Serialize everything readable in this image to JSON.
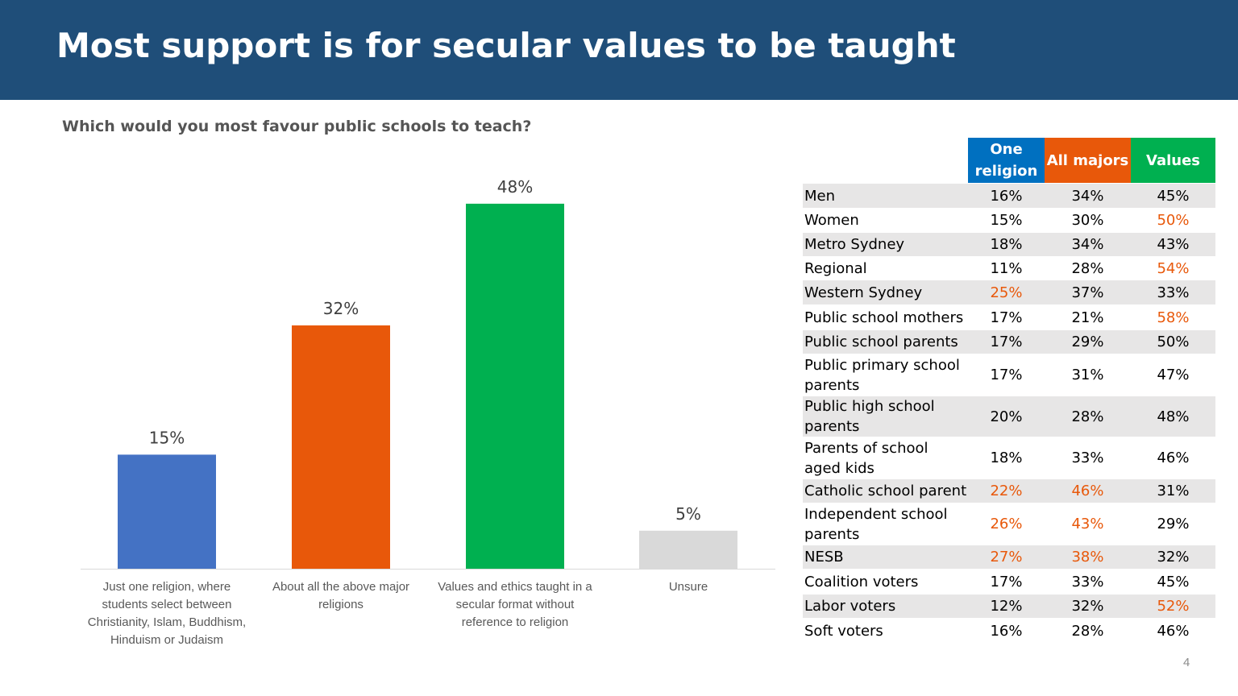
{
  "title": "Most support is for secular values to be taught",
  "subtitle": "Which would you most favour public schools to teach?",
  "page_number": "4",
  "chart_data": {
    "type": "bar",
    "categories": [
      "Just one religion, where students select between Christianity, Islam, Buddhism, Hinduism or Judaism",
      "About all the above major religions",
      "Values and ethics taught in a secular format without reference to religion",
      "Unsure"
    ],
    "category_lines": [
      [
        "Just one religion, where",
        "students select between",
        "Christianity, Islam, Buddhism,",
        "Hinduism or Judaism"
      ],
      [
        "About all the above major",
        "religions"
      ],
      [
        "Values and ethics taught in a",
        "secular format without",
        "reference to religion"
      ],
      [
        "Unsure"
      ]
    ],
    "values": [
      15,
      32,
      48,
      5
    ],
    "data_labels": [
      "15%",
      "32%",
      "48%",
      "5%"
    ],
    "colors": [
      "#4472c4",
      "#e8580a",
      "#00b050",
      "#d9d9d9"
    ],
    "ylim": [
      0,
      50
    ],
    "grid": false,
    "title": "",
    "xlabel": "",
    "ylabel": ""
  },
  "table": {
    "headers": [
      {
        "label": "One religion",
        "color": "#0070c0"
      },
      {
        "label": "All majors",
        "color": "#e8580a"
      },
      {
        "label": "Values",
        "color": "#00b050"
      }
    ],
    "highlight_color": "#e8580a",
    "rows": [
      {
        "label": "Men",
        "values": [
          "16%",
          "34%",
          "45%"
        ],
        "highlight": [
          false,
          false,
          false
        ]
      },
      {
        "label": "Women",
        "values": [
          "15%",
          "30%",
          "50%"
        ],
        "highlight": [
          false,
          false,
          true
        ]
      },
      {
        "label": "Metro Sydney",
        "values": [
          "18%",
          "34%",
          "43%"
        ],
        "highlight": [
          false,
          false,
          false
        ]
      },
      {
        "label": "Regional",
        "values": [
          "11%",
          "28%",
          "54%"
        ],
        "highlight": [
          false,
          false,
          true
        ]
      },
      {
        "label": "Western Sydney",
        "values": [
          "25%",
          "37%",
          "33%"
        ],
        "highlight": [
          true,
          false,
          false
        ]
      },
      {
        "label": "Public school mothers",
        "values": [
          "17%",
          "21%",
          "58%"
        ],
        "highlight": [
          false,
          false,
          true
        ]
      },
      {
        "label": "Public school parents",
        "values": [
          "17%",
          "29%",
          "50%"
        ],
        "highlight": [
          false,
          false,
          false
        ]
      },
      {
        "label": "Public primary school parents",
        "values": [
          "17%",
          "31%",
          "47%"
        ],
        "highlight": [
          false,
          false,
          false
        ]
      },
      {
        "label": "Public high school parents",
        "values": [
          "20%",
          "28%",
          "48%"
        ],
        "highlight": [
          false,
          false,
          false
        ]
      },
      {
        "label": "Parents of school aged kids",
        "values": [
          "18%",
          "33%",
          "46%"
        ],
        "highlight": [
          false,
          false,
          false
        ]
      },
      {
        "label": "Catholic school parent",
        "values": [
          "22%",
          "46%",
          "31%"
        ],
        "highlight": [
          true,
          true,
          false
        ]
      },
      {
        "label": "Independent school parents",
        "values": [
          "26%",
          "43%",
          "29%"
        ],
        "highlight": [
          true,
          true,
          false
        ]
      },
      {
        "label": "NESB",
        "values": [
          "27%",
          "38%",
          "32%"
        ],
        "highlight": [
          true,
          true,
          false
        ]
      },
      {
        "label": "Coalition voters",
        "values": [
          "17%",
          "33%",
          "45%"
        ],
        "highlight": [
          false,
          false,
          false
        ]
      },
      {
        "label": "Labor voters",
        "values": [
          "12%",
          "32%",
          "52%"
        ],
        "highlight": [
          false,
          false,
          true
        ]
      },
      {
        "label": "Soft voters",
        "values": [
          "16%",
          "28%",
          "46%"
        ],
        "highlight": [
          false,
          false,
          false
        ]
      }
    ]
  }
}
